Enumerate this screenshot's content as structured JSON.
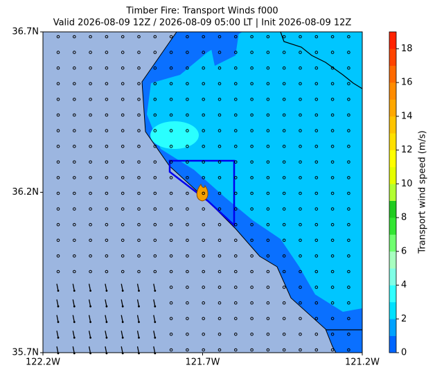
{
  "chart_data": {
    "type": "map",
    "title": "Timber Fire: Transport Winds f000",
    "subtitle": "Valid 2026-08-09 12Z / 2026-08-09 05:00 LT | Init 2026-08-09 12Z",
    "xlim": [
      -122.2,
      -121.2
    ],
    "ylim": [
      35.7,
      36.7
    ],
    "xticks": [
      {
        "value": -122.2,
        "label": "122.2W"
      },
      {
        "value": -121.7,
        "label": "121.7W"
      },
      {
        "value": -121.2,
        "label": "121.2W"
      }
    ],
    "yticks": [
      {
        "value": 35.7,
        "label": "35.7N"
      },
      {
        "value": 36.2,
        "label": "36.2N"
      },
      {
        "value": 36.7,
        "label": "36.7N"
      }
    ],
    "colorbar": {
      "label": "Transport wind speed (m/s)",
      "lim": [
        0,
        19
      ],
      "ticks": [
        0,
        2,
        4,
        6,
        8,
        10,
        12,
        14,
        16,
        18
      ],
      "colors": [
        "#0066ff",
        "#00a2ff",
        "#00e1ff",
        "#31ffff",
        "#80ffe6",
        "#a8ffc0",
        "#70ff70",
        "#33e633",
        "#20cc20",
        "#b3ff33",
        "#e6ff00",
        "#ffff00",
        "#ffe000",
        "#ffc400",
        "#ffa800",
        "#ff8c00",
        "#ff6a00",
        "#ff4400",
        "#ff2200"
      ]
    }
  }
}
